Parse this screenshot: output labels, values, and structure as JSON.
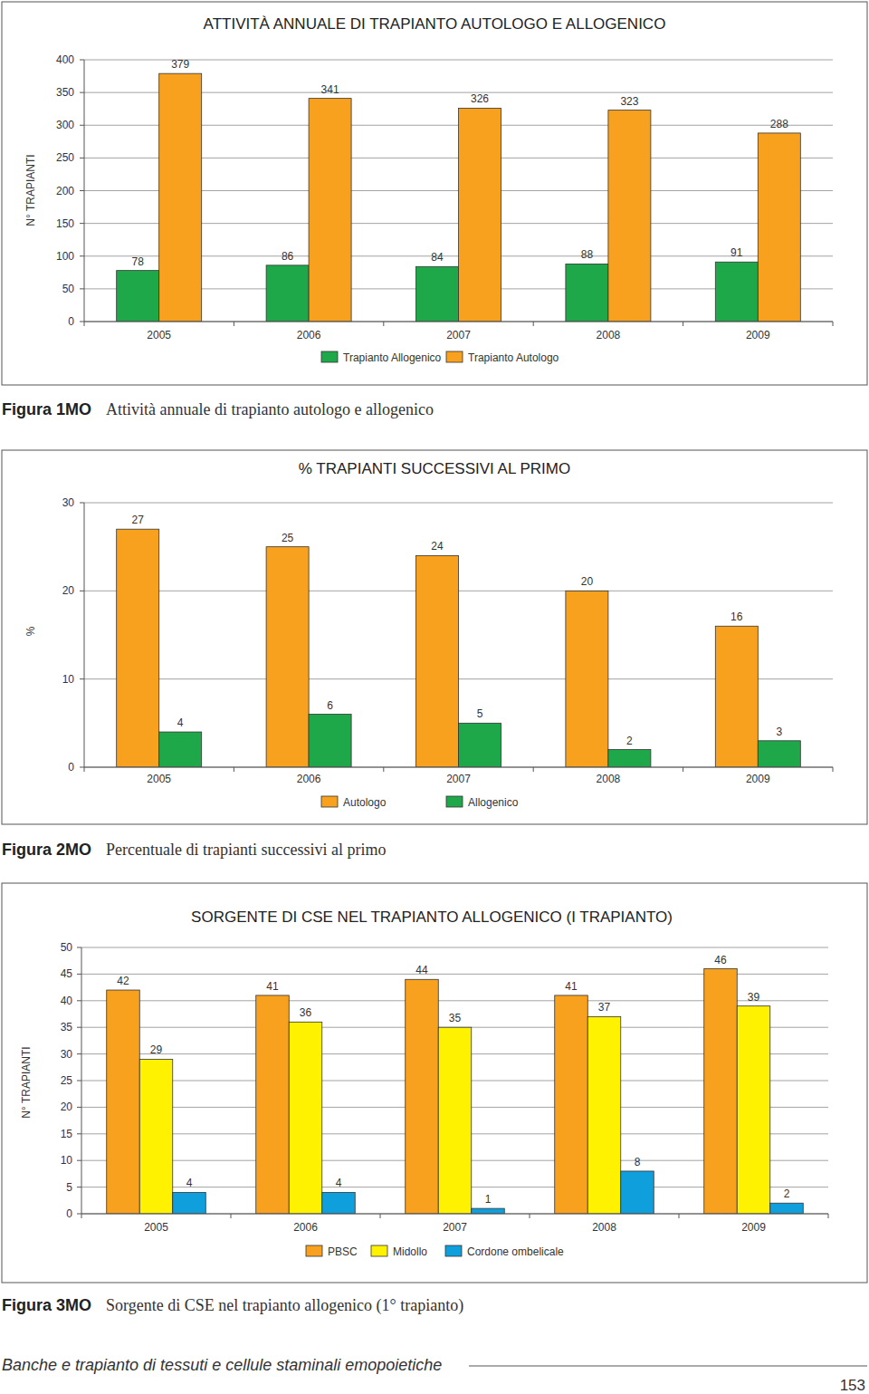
{
  "chart_data": [
    {
      "type": "bar",
      "title": "ATTIVITÀ ANNUALE DI TRAPIANTO AUTOLOGO E ALLOGENICO",
      "ylabel": "N° TRAPIANTI",
      "categories": [
        "2005",
        "2006",
        "2007",
        "2008",
        "2009"
      ],
      "series": [
        {
          "name": "Trapianto Allogenico",
          "color": "#1fa84a",
          "values": [
            78,
            86,
            84,
            88,
            91
          ]
        },
        {
          "name": "Trapianto Autologo",
          "color": "#f7a11e",
          "values": [
            379,
            341,
            326,
            323,
            288
          ]
        }
      ],
      "ylim": [
        0,
        400
      ],
      "yticks": [
        0,
        50,
        100,
        150,
        200,
        250,
        300,
        350,
        400
      ],
      "grid": true,
      "data_labels": true,
      "legend": "bottom"
    },
    {
      "type": "bar",
      "title": "% TRAPIANTI SUCCESSIVI AL PRIMO",
      "ylabel": "%",
      "categories": [
        "2005",
        "2006",
        "2007",
        "2008",
        "2009"
      ],
      "series": [
        {
          "name": "Autologo",
          "color": "#f7a11e",
          "values": [
            27,
            25,
            24,
            20,
            16
          ]
        },
        {
          "name": "Allogenico",
          "color": "#1fa84a",
          "values": [
            4,
            6,
            5,
            2,
            3
          ]
        }
      ],
      "ylim": [
        0,
        30
      ],
      "yticks": [
        0,
        10,
        20,
        30
      ],
      "grid": true,
      "data_labels": true,
      "legend": "bottom"
    },
    {
      "type": "bar",
      "title": "SORGENTE DI CSE NEL TRAPIANTO ALLOGENICO (I TRAPIANTO)",
      "ylabel": "N° TRAPIANTI",
      "categories": [
        "2005",
        "2006",
        "2007",
        "2008",
        "2009"
      ],
      "series": [
        {
          "name": "PBSC",
          "color": "#f7a11e",
          "values": [
            42,
            41,
            44,
            41,
            46
          ]
        },
        {
          "name": "Midollo",
          "color": "#fff200",
          "values": [
            29,
            36,
            35,
            37,
            39
          ]
        },
        {
          "name": "Cordone ombelicale",
          "color": "#0f9fdc",
          "values": [
            4,
            4,
            1,
            8,
            2
          ]
        }
      ],
      "ylim": [
        0,
        50
      ],
      "yticks": [
        0,
        5,
        10,
        15,
        20,
        25,
        30,
        35,
        40,
        45,
        50
      ],
      "grid": true,
      "data_labels": true,
      "legend": "bottom"
    }
  ],
  "page": {
    "figures": [
      {
        "label": "Figura 1MO",
        "caption": "Attività annuale di trapianto autologo e allogenico"
      },
      {
        "label": "Figura 2MO",
        "caption": "Percentuale di trapianti successivi al primo"
      },
      {
        "label": "Figura 3MO",
        "caption": "Sorgente di CSE nel trapianto allogenico (1° trapianto)"
      }
    ],
    "footer": "Banche e trapianto di tessuti e cellule staminali emopoietiche",
    "page_number": 153
  }
}
